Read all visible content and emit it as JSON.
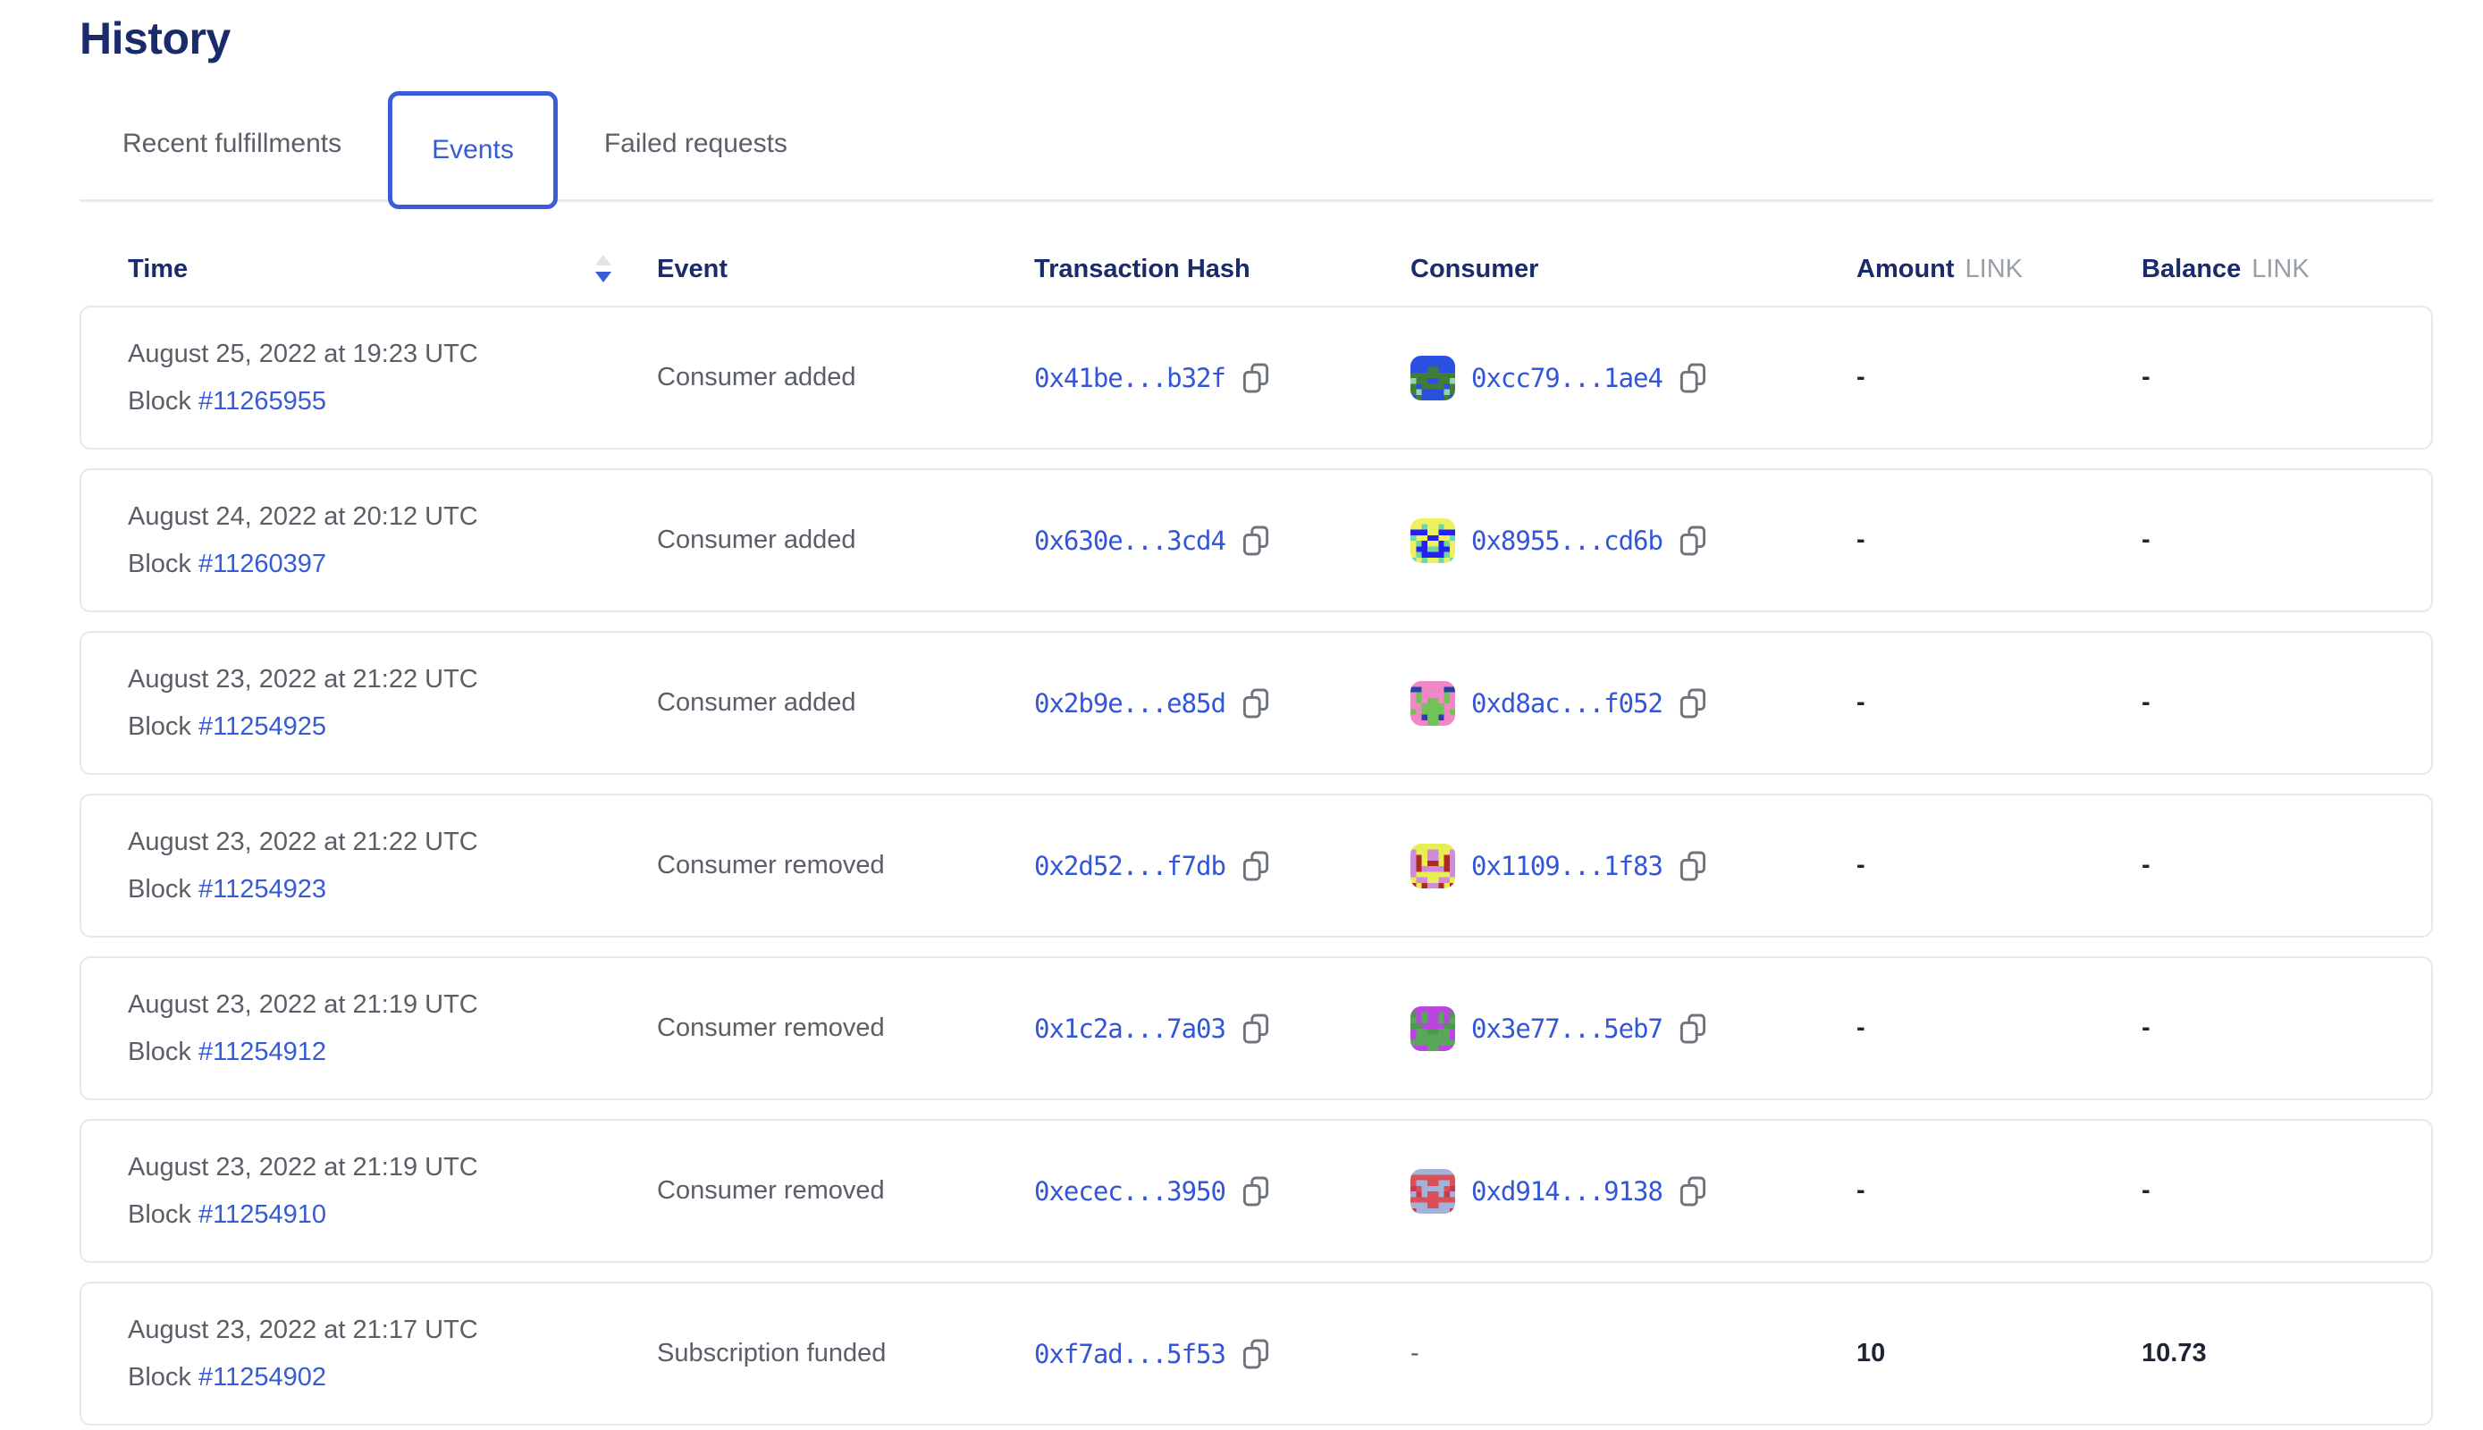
{
  "page": {
    "title": "History"
  },
  "tabs": [
    {
      "label": "Recent fulfillments",
      "active": false
    },
    {
      "label": "Events",
      "active": true
    },
    {
      "label": "Failed requests",
      "active": false
    }
  ],
  "colors": {
    "accent_blue": "#375bd2",
    "heading_navy": "#1a2b6b",
    "body_gray": "#5a5e66",
    "card_border": "#e7e8ec",
    "sort_inactive": "#e2e4e9",
    "copy_icon_gray": "#6e737c",
    "value_dark": "#1e2433"
  },
  "icons": {
    "sort": "sort-arrows (up inactive gray, down active blue)",
    "copy": "overlapping-squares copy glyph"
  },
  "table": {
    "headers": {
      "time": "Time",
      "event": "Event",
      "tx_hash": "Transaction Hash",
      "consumer": "Consumer",
      "amount": "Amount",
      "balance": "Balance",
      "unit": "LINK"
    },
    "sort": {
      "column": "time",
      "direction": "descending"
    },
    "rows": [
      {
        "time": "August 25, 2022 at 19:23 UTC",
        "block_label": "Block",
        "block_number": "#11265955",
        "event": "Consumer added",
        "tx_hash": "0x41be...b32f",
        "consumer": {
          "address": "0xcc79...1ae4",
          "avatar": {
            "bg": "#417d38",
            "color": "#2a50e0",
            "spot": "#90d6ad"
          }
        },
        "amount": "-",
        "balance": "-"
      },
      {
        "time": "August 24, 2022 at 20:12 UTC",
        "block_label": "Block",
        "block_number": "#11260397",
        "event": "Consumer added",
        "tx_hash": "0x630e...3cd4",
        "consumer": {
          "address": "0x8955...cd6b",
          "avatar": {
            "bg": "#2621f0",
            "color": "#eef060",
            "spot": "#6cd9a2"
          }
        },
        "amount": "-",
        "balance": "-"
      },
      {
        "time": "August 23, 2022 at 21:22 UTC",
        "block_label": "Block",
        "block_number": "#11254925",
        "event": "Consumer added",
        "tx_hash": "0x2b9e...e85d",
        "consumer": {
          "address": "0xd8ac...f052",
          "avatar": {
            "bg": "#70c457",
            "color": "#f087c7",
            "spot": "#2741a8"
          }
        },
        "amount": "-",
        "balance": "-"
      },
      {
        "time": "August 23, 2022 at 21:22 UTC",
        "block_label": "Block",
        "block_number": "#11254923",
        "event": "Consumer removed",
        "tx_hash": "0x2d52...f7db",
        "consumer": {
          "address": "0x1109...1f83",
          "avatar": {
            "bg": "#cf8cdd",
            "color": "#e7ed52",
            "spot": "#ad2b20"
          }
        },
        "amount": "-",
        "balance": "-"
      },
      {
        "time": "August 23, 2022 at 21:19 UTC",
        "block_label": "Block",
        "block_number": "#11254912",
        "event": "Consumer removed",
        "tx_hash": "0x1c2a...7a03",
        "consumer": {
          "address": "0x3e77...5eb7",
          "avatar": {
            "bg": "#59a758",
            "color": "#bb45df",
            "spot": "#4a9a4e"
          }
        },
        "amount": "-",
        "balance": "-"
      },
      {
        "time": "August 23, 2022 at 21:19 UTC",
        "block_label": "Block",
        "block_number": "#11254910",
        "event": "Consumer removed",
        "tx_hash": "0xecec...3950",
        "consumer": {
          "address": "0xd914...9138",
          "avatar": {
            "bg": "#da4f58",
            "color": "#a3b2d9",
            "spot": "#c23f49"
          }
        },
        "amount": "-",
        "balance": "-"
      },
      {
        "time": "August 23, 2022 at 21:17 UTC",
        "block_label": "Block",
        "block_number": "#11254902",
        "event": "Subscription funded",
        "tx_hash": "0xf7ad...5f53",
        "consumer": null,
        "consumer_empty": "-",
        "amount": "10",
        "balance": "10.73"
      }
    ]
  }
}
